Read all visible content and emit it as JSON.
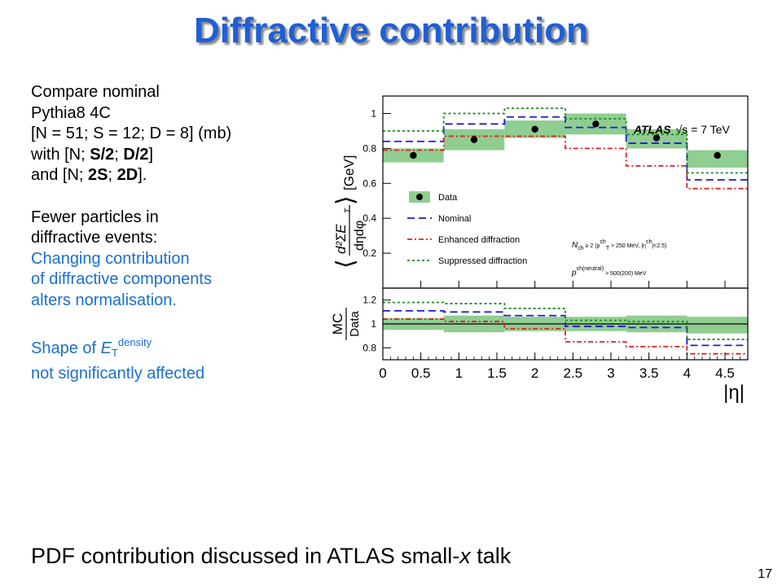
{
  "slide": {
    "title": "Diffractive contribution",
    "bottom_note": {
      "before": "PDF contribution discussed in ATLAS small-",
      "italic": "x",
      "after": " talk"
    },
    "page_number": "17"
  },
  "text": {
    "l1": "Compare nominal",
    "l2": "Pythia8 4C",
    "l3": "[N = 51; S = 12; D = 8] (mb)",
    "l4_pre": "with [N; ",
    "l4_s": "S/2",
    "l4_sep": "; ",
    "l4_d": "D/2",
    "l4_post": "]",
    "l5_pre": "and [N; ",
    "l5_s": "2S",
    "l5_sep": "; ",
    "l5_d": "2D",
    "l5_post": "].",
    "fewer1": "Fewer particles in",
    "fewer2": "diffractive events:",
    "blue1": "Changing contribution",
    "blue2": "of diffractive components",
    "blue3": "alters normalisation.",
    "shape_pre": "Shape of ",
    "shape_E": "E",
    "shape_sub": "T",
    "shape_sup": "density",
    "shape2": "not significantly affected"
  },
  "chart_data": {
    "type": "line",
    "bin_edges": [
      0,
      0.8,
      1.6,
      2.4,
      3.2,
      4.0,
      4.8
    ],
    "x_ticks": [
      0,
      0.5,
      1,
      1.5,
      2,
      2.5,
      3,
      3.5,
      4,
      4.5
    ],
    "xlim": [
      0,
      4.8
    ],
    "xlabel": "|η|",
    "top_panel": {
      "ylim": [
        0,
        1.1
      ],
      "y_ticks": [
        0.2,
        0.4,
        0.6,
        0.8,
        1
      ],
      "ylabel": {
        "sym": "⟨",
        "num": "d²ΣE",
        "sub": "T",
        "den": "dηdφ",
        "close": "⟩",
        "unit": "[GeV]"
      },
      "data": {
        "name": "Data",
        "x": [
          0.4,
          1.2,
          2.0,
          2.8,
          3.6,
          4.4
        ],
        "y": [
          0.76,
          0.85,
          0.91,
          0.94,
          0.86,
          0.76
        ],
        "band_low": [
          0.72,
          0.79,
          0.86,
          0.88,
          0.8,
          0.69
        ],
        "band_high": [
          0.8,
          0.91,
          0.96,
          1.0,
          0.91,
          0.79
        ]
      },
      "series": [
        {
          "name": "Nominal",
          "values": [
            0.84,
            0.94,
            0.98,
            0.92,
            0.83,
            0.62
          ],
          "color": "#1a1ad9",
          "dash": "9,5"
        },
        {
          "name": "Enhanced diffraction",
          "values": [
            0.79,
            0.87,
            0.87,
            0.8,
            0.7,
            0.57
          ],
          "color": "#e02020",
          "dash": "6,3,2,3"
        },
        {
          "name": "Suppressed diffraction",
          "values": [
            0.9,
            1.0,
            1.03,
            0.97,
            0.88,
            0.66
          ],
          "color": "#1f8a1f",
          "dash": "3,3"
        }
      ],
      "atlas_label": "ATLAS",
      "energy_label": "√s = 7 TeV",
      "cut1": {
        "pre": "N",
        "sub1": "ch",
        "mid": " ≥ 2 (p",
        "sup": "ch",
        "sub2": "T",
        "post": " > 250 MeV, |η",
        "sup2": "ch",
        "end": "|<2.5)"
      },
      "cut2": {
        "pre": "p",
        "sup": "ch(neutral)",
        "post": " > 500(200) MeV"
      }
    },
    "ratio_panel": {
      "ylim": [
        0.7,
        1.3
      ],
      "y_ticks": [
        0.8,
        1,
        1.2
      ],
      "ylabel_num": "MC",
      "ylabel_den": "Data",
      "band_low": [
        0.95,
        0.93,
        0.94,
        0.94,
        0.93,
        0.92
      ],
      "band_high": [
        1.05,
        1.07,
        1.06,
        1.06,
        1.07,
        1.06
      ],
      "series": [
        {
          "name": "Nominal",
          "values": [
            1.11,
            1.1,
            1.07,
            0.98,
            0.97,
            0.82
          ]
        },
        {
          "name": "Enhanced diffraction",
          "values": [
            1.04,
            1.02,
            0.96,
            0.85,
            0.81,
            0.75
          ]
        },
        {
          "name": "Suppressed diffraction",
          "values": [
            1.18,
            1.17,
            1.13,
            1.03,
            1.02,
            0.87
          ]
        }
      ]
    },
    "colors": {
      "band": "#90cd90",
      "marker": "#000000"
    },
    "legend_position": "left-middle of top panel"
  }
}
